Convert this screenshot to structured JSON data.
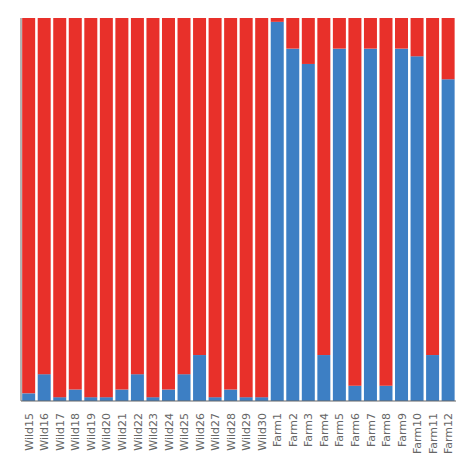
{
  "chart_data": {
    "type": "bar",
    "stacked": true,
    "categories": [
      "Wild15",
      "Wild16",
      "Wild17",
      "Wild18",
      "Wild19",
      "Wild20",
      "Wild21",
      "Wild22",
      "Wild23",
      "Wild24",
      "Wild25",
      "Wild26",
      "Wild27",
      "Wild28",
      "Wild29",
      "Wild30",
      "Farm1",
      "Farm2",
      "Farm3",
      "Farm4",
      "Farm5",
      "Farm6",
      "Farm7",
      "Farm8",
      "Farm9",
      "Farm10",
      "Farm11",
      "Farm12"
    ],
    "series": [
      {
        "color": "#3D7FC4",
        "values": [
          0.02,
          0.07,
          0.01,
          0.03,
          0.01,
          0.01,
          0.03,
          0.07,
          0.01,
          0.03,
          0.07,
          0.12,
          0.01,
          0.03,
          0.01,
          0.01,
          0.99,
          0.92,
          0.88,
          0.12,
          0.92,
          0.04,
          0.92,
          0.04,
          0.92,
          0.9,
          0.12,
          0.84
        ]
      },
      {
        "color": "#E8302A",
        "values": [
          0.98,
          0.93,
          0.99,
          0.97,
          0.99,
          0.99,
          0.97,
          0.93,
          0.99,
          0.97,
          0.93,
          0.88,
          0.99,
          0.97,
          0.99,
          0.99,
          0.01,
          0.08,
          0.12,
          0.88,
          0.08,
          0.96,
          0.08,
          0.96,
          0.08,
          0.1,
          0.88,
          0.16
        ]
      }
    ],
    "ylim": [
      0,
      1
    ],
    "tick_labels": "x",
    "grid": false
  }
}
